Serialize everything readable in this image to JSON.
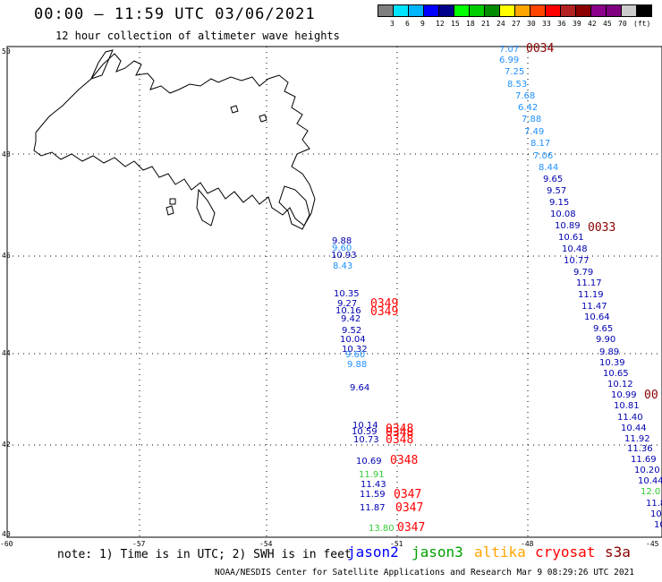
{
  "header": {
    "title": "00:00 – 11:59 UTC 03/06/2021",
    "subtitle": "12 hour collection of altimeter wave heights"
  },
  "color_scale": {
    "unit_label": "(ft)",
    "swatch_colors": [
      "#7f7f7f",
      "#00e5ff",
      "#00b5ff",
      "#0000ff",
      "#00008b",
      "#00ff00",
      "#00cd00",
      "#008b00",
      "#ffff00",
      "#ffa500",
      "#ff4500",
      "#ff0000",
      "#b22222",
      "#8b0000",
      "#8b008b",
      "#800080",
      "#cccccc",
      "#000000"
    ],
    "tick_labels": [
      "3",
      "6",
      "9",
      "12",
      "15",
      "18",
      "21",
      "24",
      "27",
      "30",
      "33",
      "36",
      "39",
      "42",
      "45",
      "70"
    ]
  },
  "map": {
    "lat_labels": [
      "50",
      "48",
      "46",
      "44",
      "42",
      "40"
    ],
    "lon_labels": [
      "-60",
      "-57",
      "-54",
      "-51",
      "-48",
      "-45"
    ]
  },
  "observations": [
    {
      "text": "7.07",
      "color": "#1e90ff"
    },
    {
      "text": "6.99",
      "color": "#1e90ff"
    },
    {
      "text": "7.25",
      "color": "#1e90ff"
    },
    {
      "text": "8.53",
      "color": "#1e90ff"
    },
    {
      "text": "7.68",
      "color": "#1e90ff"
    },
    {
      "text": "6.42",
      "color": "#1e90ff"
    },
    {
      "text": "7.88",
      "color": "#1e90ff"
    },
    {
      "text": "7.49",
      "color": "#1e90ff"
    },
    {
      "text": "8.17",
      "color": "#1e90ff"
    },
    {
      "text": "7.06",
      "color": "#1e90ff"
    },
    {
      "text": "8.44",
      "color": "#1e90ff"
    },
    {
      "text": "9.65",
      "color": "#0000b0"
    },
    {
      "text": "9.57",
      "color": "#0000b0"
    },
    {
      "text": "9.15",
      "color": "#0000b0"
    },
    {
      "text": "10.08",
      "color": "#0000b0"
    },
    {
      "text": "10.89",
      "color": "#0000b0"
    },
    {
      "text": "10.61",
      "color": "#0000b0"
    },
    {
      "text": "10.48",
      "color": "#0000b0"
    },
    {
      "text": "10.77",
      "color": "#0000b0"
    },
    {
      "text": "9.79",
      "color": "#0000b0"
    },
    {
      "text": "11.17",
      "color": "#0000b0"
    },
    {
      "text": "11.19",
      "color": "#0000b0"
    },
    {
      "text": "11.47",
      "color": "#0000b0"
    },
    {
      "text": "10.64",
      "color": "#0000b0"
    },
    {
      "text": "9.65",
      "color": "#0000b0"
    },
    {
      "text": "9.90",
      "color": "#0000b0"
    },
    {
      "text": "9.89",
      "color": "#0000b0"
    },
    {
      "text": "10.39",
      "color": "#0000b0"
    },
    {
      "text": "10.65",
      "color": "#0000b0"
    },
    {
      "text": "10.12",
      "color": "#0000b0"
    },
    {
      "text": "10.99",
      "color": "#0000b0"
    },
    {
      "text": "10.81",
      "color": "#0000b0"
    },
    {
      "text": "11.40",
      "color": "#0000b0"
    },
    {
      "text": "10.44",
      "color": "#0000b0"
    },
    {
      "text": "11.92",
      "color": "#0000b0"
    },
    {
      "text": "11.36",
      "color": "#0000b0"
    },
    {
      "text": "11.69",
      "color": "#0000b0"
    },
    {
      "text": "10.20",
      "color": "#0000b0"
    },
    {
      "text": "10.44",
      "color": "#0000b0"
    },
    {
      "text": "12.0",
      "color": "#33cc33"
    },
    {
      "text": "11.8",
      "color": "#0000b0"
    },
    {
      "text": "10.",
      "color": "#0000b0"
    },
    {
      "text": "10",
      "color": "#0000b0"
    },
    {
      "text": "9.88",
      "color": "#0000b0"
    },
    {
      "text": "9.60",
      "color": "#1e90ff"
    },
    {
      "text": "10.93",
      "color": "#0000b0"
    },
    {
      "text": "8.43",
      "color": "#1e90ff"
    },
    {
      "text": "10.35",
      "color": "#0000b0"
    },
    {
      "text": "9.27",
      "color": "#0000b0"
    },
    {
      "text": "10.16",
      "color": "#0000b0"
    },
    {
      "text": "9.42",
      "color": "#0000b0"
    },
    {
      "text": "9.52",
      "color": "#0000b0"
    },
    {
      "text": "10.04",
      "color": "#0000b0"
    },
    {
      "text": "10.32",
      "color": "#0000b0"
    },
    {
      "text": "9.60",
      "color": "#1e90ff"
    },
    {
      "text": "9.88",
      "color": "#1e90ff"
    },
    {
      "text": "9.64",
      "color": "#0000b0"
    },
    {
      "text": "10.14",
      "color": "#0000b0"
    },
    {
      "text": "10.59",
      "color": "#0000b0"
    },
    {
      "text": "10.73",
      "color": "#0000b0"
    },
    {
      "text": "10.69",
      "color": "#0000b0"
    },
    {
      "text": "11.91",
      "color": "#33cc33"
    },
    {
      "text": "11.43",
      "color": "#0000b0"
    },
    {
      "text": "11.59",
      "color": "#0000b0"
    },
    {
      "text": "11.87",
      "color": "#0000b0"
    },
    {
      "text": "13.80",
      "color": "#33cc33"
    }
  ],
  "time_tags": [
    {
      "text": "0034",
      "color": "#8b0000"
    },
    {
      "text": "0033",
      "color": "#8b0000"
    },
    {
      "text": "00",
      "color": "#8b0000"
    },
    {
      "text": "0349",
      "color": "#ff0000"
    },
    {
      "text": "0349",
      "color": "#ff0000"
    },
    {
      "text": "0348",
      "color": "#ff0000"
    },
    {
      "text": "0348",
      "color": "#ff0000"
    },
    {
      "text": "0348",
      "color": "#ff0000"
    },
    {
      "text": "0348",
      "color": "#ff0000"
    },
    {
      "text": "0347",
      "color": "#ff0000"
    },
    {
      "text": "0347",
      "color": "#ff0000"
    },
    {
      "text": "0347",
      "color": "#ff0000"
    }
  ],
  "footer": {
    "note": "note: 1) Time is in UTC; 2) SWH is in feet",
    "satellites": [
      {
        "label": "jason2",
        "color": "#0000ff"
      },
      {
        "label": "jason3",
        "color": "#00a000"
      },
      {
        "label": "altika",
        "color": "#ffa500"
      },
      {
        "label": "cryosat",
        "color": "#ff0000"
      },
      {
        "label": "s3a",
        "color": "#8b0000"
      }
    ],
    "credit": "NOAA/NESDIS Center for Satellite Applications and Research    Mar  9 08:29:26 UTC 2021"
  }
}
